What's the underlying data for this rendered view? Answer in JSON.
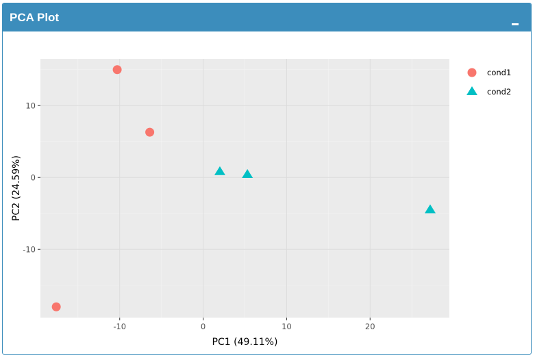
{
  "box": {
    "title": "PCA Plot",
    "collapse_icon": "minus-icon"
  },
  "colors": {
    "header": "#3c8dbc",
    "panel_bg": "#ebebeb",
    "grid": "#ffffff",
    "cond1": "#f8766d",
    "cond2": "#00bfc4"
  },
  "chart_data": {
    "type": "scatter",
    "title": "",
    "xlabel": "PC1 (49.11%)",
    "ylabel": "PC2 (24.59%)",
    "xlim": [
      -19.5,
      29.5
    ],
    "ylim": [
      -19.5,
      16.5
    ],
    "x_ticks": [
      -10,
      0,
      10,
      20
    ],
    "y_ticks": [
      -10,
      0,
      10
    ],
    "x_tick_labels": [
      "-10",
      "0",
      "10",
      "20"
    ],
    "y_tick_labels": [
      "-10",
      "0",
      "10"
    ],
    "grid": true,
    "legend_position": "right",
    "series": [
      {
        "name": "cond1",
        "marker": "circle",
        "color": "#f8766d",
        "points": [
          {
            "x": -10.3,
            "y": 15.0
          },
          {
            "x": -6.4,
            "y": 6.3
          },
          {
            "x": -17.6,
            "y": -18.0
          }
        ]
      },
      {
        "name": "cond2",
        "marker": "triangle",
        "color": "#00bfc4",
        "points": [
          {
            "x": 2.0,
            "y": 0.8
          },
          {
            "x": 5.3,
            "y": 0.4
          },
          {
            "x": 27.2,
            "y": -4.5
          }
        ]
      }
    ]
  }
}
